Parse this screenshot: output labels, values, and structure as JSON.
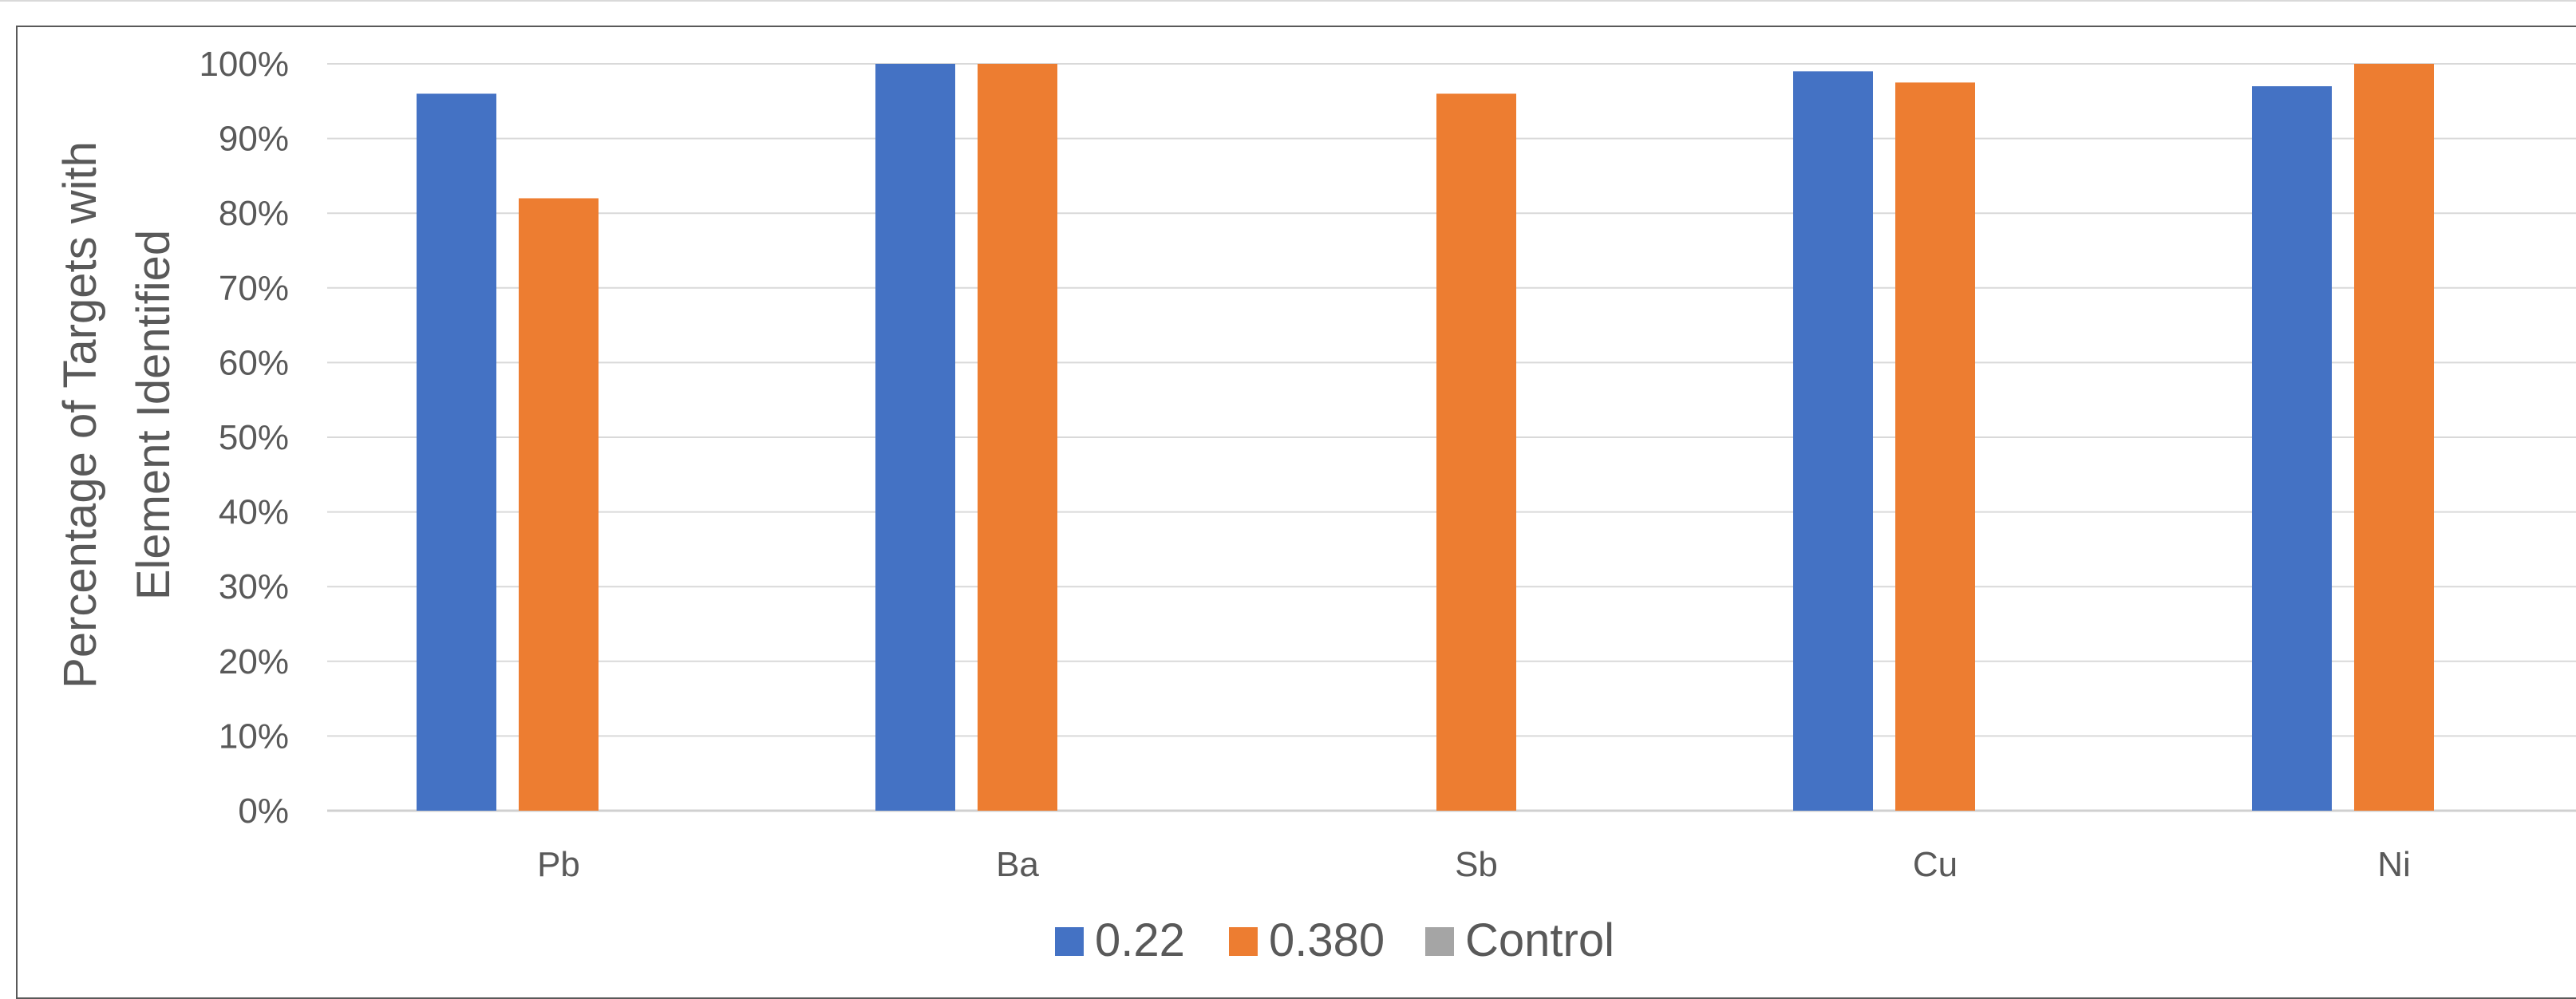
{
  "chart_data": {
    "type": "bar",
    "title": "",
    "xlabel": "",
    "ylabel": "Percentage of Targets with Element Identified",
    "ylabel_lines": [
      "Percentage of Targets with",
      "Element Identified"
    ],
    "categories": [
      "Pb",
      "Ba",
      "Sb",
      "Cu",
      "Ni"
    ],
    "series": [
      {
        "name": "0.22",
        "color": "#4472C4",
        "values": [
          96,
          100,
          0,
          99,
          97
        ]
      },
      {
        "name": "0.380",
        "color": "#ED7D31",
        "values": [
          82,
          100,
          96,
          97.5,
          100
        ]
      },
      {
        "name": "Control",
        "color": "#A5A5A5",
        "values": [
          0,
          0,
          0,
          0,
          0
        ]
      }
    ],
    "ylim": [
      0,
      100
    ],
    "yticks": [
      "0%",
      "10%",
      "20%",
      "30%",
      "40%",
      "50%",
      "60%",
      "70%",
      "80%",
      "90%",
      "100%"
    ],
    "grid": true,
    "legend_position": "bottom"
  }
}
